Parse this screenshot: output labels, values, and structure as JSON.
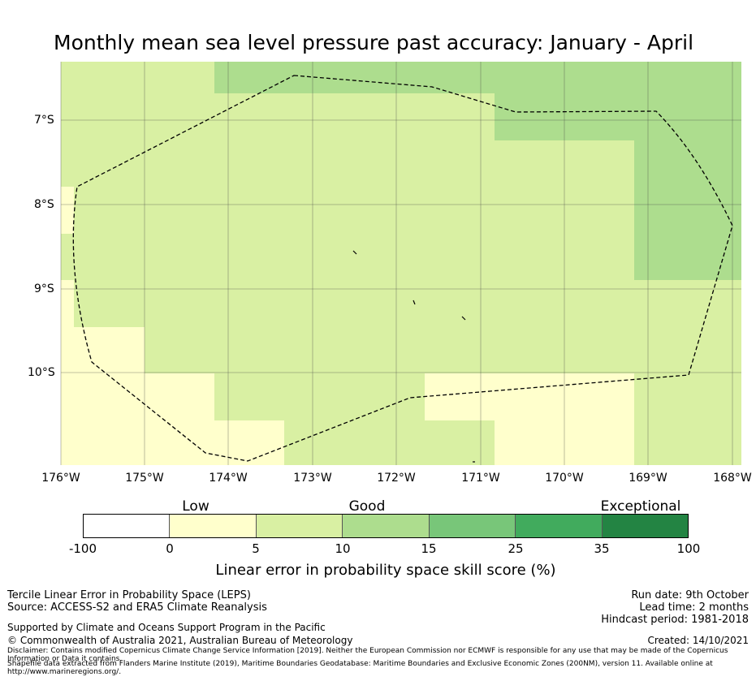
{
  "title": "Monthly mean sea level pressure past accuracy: January - April",
  "map": {
    "lat_labels": [
      "7°S",
      "8°S",
      "9°S",
      "10°S"
    ],
    "lon_labels": [
      "176°W",
      "175°W",
      "174°W",
      "173°W",
      "172°W",
      "171°W",
      "170°W",
      "169°W",
      "168°W"
    ],
    "extent": {
      "lon_min": -176,
      "lon_max": -167.9,
      "lat_max": -6.3,
      "lat_min": -11.1
    },
    "colors": {
      "very_low": "#ffffff",
      "low": "#ffffcc",
      "good": "#d9f0a3",
      "good_plus": "#addd8e",
      "very_good": "#78c679",
      "high": "#41ab5d",
      "exceptional": "#238443"
    }
  },
  "legend": {
    "category_labels": [
      "Low",
      "Good",
      "Exceptional"
    ],
    "ticks": [
      "-100",
      "0",
      "5",
      "10",
      "15",
      "25",
      "35",
      "100"
    ],
    "colors": [
      "#ffffff",
      "#ffffcc",
      "#d9f0a3",
      "#addd8e",
      "#78c679",
      "#41ab5d",
      "#238443"
    ],
    "title": "Linear error in probability space skill score (%)"
  },
  "footer": {
    "method": "Tercile Linear Error in Probability Space (LEPS)",
    "source": "Source: ACCESS-S2 and ERA5 Climate Reanalysis",
    "supported": "Supported by Climate and Oceans Support Program in the Pacific",
    "copyright": "© Commonwealth of Australia 2021, Australian Bureau of Meteorology",
    "disclaimer": "Disclaimer: Contains modified Copernicus Climate Change Service Information [2019]. Neither the European Commission nor ECMWF is responsible for any use that may be made of the Copernicus Information or Data it contains.",
    "shapefile": "Shapefile data extracted from Flanders Marine Institute (2019), Maritime Boundaries Geodatabase: Maritime Boundaries and Exclusive Economic Zones (200NM), version 11. Available online at http://www.marineregions.org/.",
    "run_date": "Run date: 9th October",
    "lead_time": "Lead time: 2 months",
    "hindcast": "Hindcast period: 1981-2018",
    "created": "Created: 14/10/2021"
  }
}
